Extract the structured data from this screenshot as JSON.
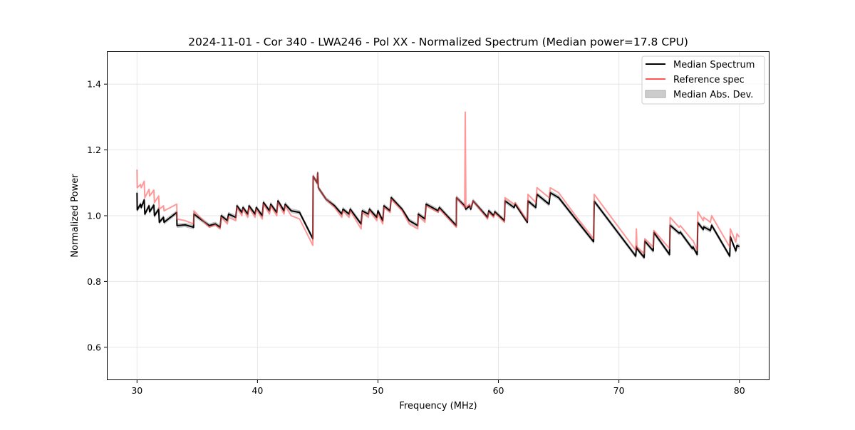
{
  "chart_data": {
    "type": "line",
    "title": "2024-11-01 - Cor 340 - LWA246 - Pol XX - Normalized Spectrum (Median power=17.8 CPU)",
    "xlabel": "Frequency (MHz)",
    "ylabel": "Normalized Power",
    "xlim": [
      27.5,
      82.5
    ],
    "ylim": [
      0.5,
      1.5
    ],
    "xticks": [
      30,
      40,
      50,
      60,
      70,
      80
    ],
    "yticks": [
      0.6,
      0.8,
      1.0,
      1.2,
      1.4
    ],
    "xtick_labels": [
      "30",
      "40",
      "50",
      "60",
      "70",
      "80"
    ],
    "ytick_labels": [
      "0.6",
      "0.8",
      "1.0",
      "1.2",
      "1.4"
    ],
    "grid": true,
    "legend_position": "top-right",
    "legend": [
      "Median Spectrum",
      "Reference spec",
      "Median Abs. Dev."
    ],
    "colors": {
      "median": "#000000",
      "reference": "#ff5555",
      "mad": "#999999"
    },
    "mad": 0.006,
    "x": [
      30.0,
      30.02,
      30.3,
      30.35,
      30.6,
      30.65,
      31.0,
      31.05,
      31.4,
      31.45,
      31.8,
      31.85,
      32.2,
      32.25,
      33.3,
      33.32,
      34.0,
      34.7,
      34.72,
      36.0,
      36.5,
      36.9,
      37.0,
      37.5,
      37.6,
      38.2,
      38.3,
      38.7,
      38.8,
      39.2,
      39.3,
      39.8,
      39.9,
      40.4,
      40.5,
      41.0,
      41.1,
      41.6,
      41.7,
      42.2,
      42.3,
      42.8,
      43.5,
      44.6,
      44.62,
      44.95,
      45.0,
      45.05,
      45.7,
      46.4,
      47.0,
      47.1,
      47.6,
      47.7,
      48.6,
      48.7,
      49.2,
      49.3,
      49.9,
      50.0,
      50.4,
      50.5,
      51.0,
      51.1,
      52.0,
      52.6,
      53.3,
      53.35,
      53.9,
      54.0,
      55.0,
      55.1,
      56.5,
      56.52,
      57.2,
      57.25,
      57.3,
      57.6,
      57.7,
      57.9,
      59.1,
      59.2,
      59.6,
      59.7,
      60.5,
      60.55,
      61.3,
      61.4,
      62.4,
      62.45,
      63.1,
      63.2,
      64.2,
      64.3,
      65.0,
      66.5,
      67.9,
      67.95,
      71.4,
      71.45,
      71.5,
      72.1,
      72.15,
      72.85,
      72.9,
      74.2,
      74.25,
      75.0,
      75.1,
      76.1,
      76.15,
      76.5,
      76.55,
      77.0,
      77.05,
      77.6,
      77.7,
      79.2,
      79.25,
      79.7,
      79.8,
      80.0
    ],
    "series": [
      {
        "name": "Median Spectrum",
        "values": [
          1.07,
          1.018,
          1.035,
          1.025,
          1.048,
          1.005,
          1.03,
          1.012,
          1.032,
          1.0,
          1.02,
          0.98,
          0.995,
          0.98,
          1.01,
          0.97,
          0.972,
          0.965,
          1.005,
          0.97,
          0.975,
          0.965,
          1.0,
          0.985,
          1.005,
          0.995,
          1.03,
          1.01,
          1.025,
          1.005,
          1.03,
          1.005,
          1.025,
          1.0,
          1.04,
          1.015,
          1.035,
          1.01,
          1.045,
          1.015,
          1.035,
          1.015,
          1.01,
          0.93,
          1.12,
          1.1,
          1.13,
          1.085,
          1.05,
          1.03,
          1.005,
          1.02,
          1.005,
          1.02,
          0.975,
          1.015,
          1.005,
          1.02,
          0.995,
          1.015,
          0.985,
          1.03,
          1.015,
          1.055,
          1.02,
          0.985,
          0.97,
          1.005,
          0.99,
          1.035,
          1.015,
          1.025,
          0.97,
          1.055,
          1.03,
          1.025,
          1.02,
          1.03,
          1.02,
          1.045,
          0.995,
          1.015,
          1.0,
          1.012,
          0.985,
          1.045,
          1.025,
          1.035,
          0.98,
          1.045,
          1.025,
          1.065,
          1.035,
          1.07,
          1.055,
          0.985,
          0.921,
          1.044,
          0.877,
          0.906,
          0.9,
          0.873,
          0.923,
          0.893,
          0.949,
          0.882,
          0.971,
          0.947,
          0.95,
          0.9,
          0.905,
          0.882,
          0.979,
          0.958,
          0.966,
          0.955,
          0.971,
          0.877,
          0.936,
          0.893,
          0.91,
          0.906
        ]
      },
      {
        "name": "Reference spec",
        "values": [
          1.14,
          1.085,
          1.095,
          1.085,
          1.105,
          1.055,
          1.08,
          1.06,
          1.078,
          1.04,
          1.06,
          1.02,
          1.03,
          1.015,
          1.035,
          0.99,
          0.985,
          0.975,
          1.015,
          0.965,
          0.972,
          0.96,
          0.995,
          0.975,
          0.995,
          0.985,
          1.025,
          1.0,
          1.02,
          0.995,
          1.025,
          0.995,
          1.02,
          0.99,
          1.035,
          1.005,
          1.03,
          1.0,
          1.04,
          1.005,
          1.03,
          1.0,
          0.99,
          0.91,
          1.12,
          1.1,
          1.13,
          1.085,
          1.05,
          1.025,
          0.995,
          1.015,
          0.995,
          1.015,
          0.96,
          1.01,
          0.995,
          1.015,
          0.985,
          1.005,
          0.975,
          1.025,
          1.01,
          1.05,
          1.015,
          0.975,
          0.96,
          1.0,
          0.98,
          1.03,
          1.01,
          1.02,
          0.965,
          1.055,
          1.025,
          1.315,
          1.025,
          1.035,
          1.025,
          1.045,
          0.99,
          1.01,
          0.995,
          1.008,
          0.98,
          1.055,
          1.035,
          1.04,
          0.985,
          1.065,
          1.04,
          1.085,
          1.055,
          1.085,
          1.07,
          0.995,
          0.93,
          1.065,
          0.895,
          0.96,
          0.905,
          0.885,
          0.93,
          0.905,
          0.955,
          0.9,
          0.995,
          0.965,
          0.97,
          0.925,
          0.925,
          0.895,
          1.012,
          0.985,
          0.995,
          0.98,
          1.0,
          0.905,
          0.96,
          0.92,
          0.945,
          0.935
        ]
      }
    ]
  }
}
